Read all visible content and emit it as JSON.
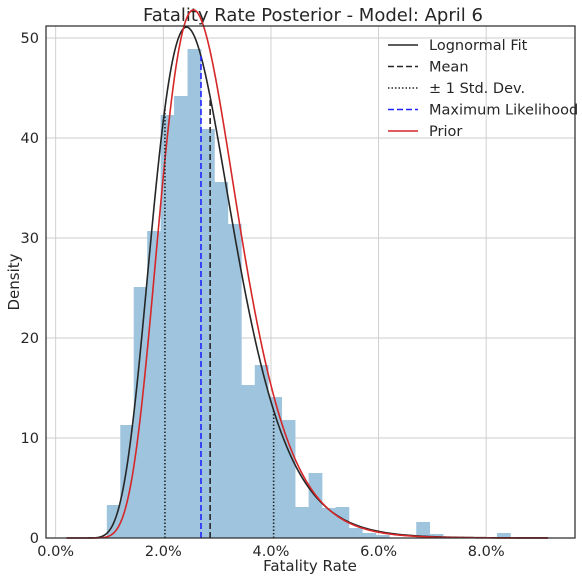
{
  "chart_data": {
    "type": "histogram+line",
    "title": "Fatality Rate Posterior - Model: April 6",
    "xlabel": "Fatality Rate",
    "ylabel": "Density",
    "xlim": [
      -0.0018,
      0.0965
    ],
    "ylim": [
      0,
      51.2
    ],
    "x_ticks": [
      0.0,
      0.02,
      0.04,
      0.06,
      0.08
    ],
    "x_tick_labels": [
      "0.0%",
      "2.0%",
      "4.0%",
      "6.0%",
      "8.0%"
    ],
    "y_ticks": [
      0,
      10,
      20,
      30,
      40,
      50
    ],
    "y_tick_labels": [
      "0",
      "10",
      "20",
      "30",
      "40",
      "50"
    ],
    "grid": true,
    "legend_position": "top-right",
    "histogram": {
      "bin_width": 0.0025,
      "bin_starts": [
        0.0095,
        0.012,
        0.0145,
        0.017,
        0.0195,
        0.022,
        0.0245,
        0.027,
        0.0295,
        0.032,
        0.0345,
        0.037,
        0.0395,
        0.042,
        0.0445,
        0.047,
        0.0495,
        0.052,
        0.0545,
        0.057,
        0.0595,
        0.062,
        0.0645,
        0.067,
        0.0695,
        0.072,
        0.0745,
        0.077,
        0.0795,
        0.082,
        0.0845
      ],
      "densities": [
        3.3,
        11.3,
        25.1,
        30.7,
        42.3,
        44.2,
        48.9,
        40.9,
        35.6,
        31.4,
        15.3,
        17.3,
        14.1,
        11.8,
        3.1,
        6.5,
        3.0,
        3.1,
        1.0,
        0.5,
        0.3,
        0.0,
        0.0,
        1.6,
        0.4,
        0.0,
        0.0,
        0.0,
        0.0,
        0.5,
        0.0
      ],
      "color": "#9ec4de"
    },
    "series": [
      {
        "name": "Lognormal Fit",
        "style": "solid",
        "color": "#262626",
        "mu": -3.623,
        "sigma": 0.3065,
        "x_range": [
          0.002,
          0.0915
        ]
      },
      {
        "name": "Mean",
        "style": "dashed",
        "color": "#262626",
        "x": 0.0287
      },
      {
        "name": "± 1 Std. Dev.",
        "style": "dotted",
        "color": "#262626",
        "x": [
          0.0203,
          0.0405
        ]
      },
      {
        "name": "Maximum Likelihood",
        "style": "dashed",
        "color": "#1f24ff",
        "x": 0.027
      },
      {
        "name": "Prior",
        "style": "solid",
        "color": "#d62728",
        "mu": -3.585,
        "sigma": 0.2835,
        "x_range": [
          0.002,
          0.0915
        ]
      }
    ]
  }
}
